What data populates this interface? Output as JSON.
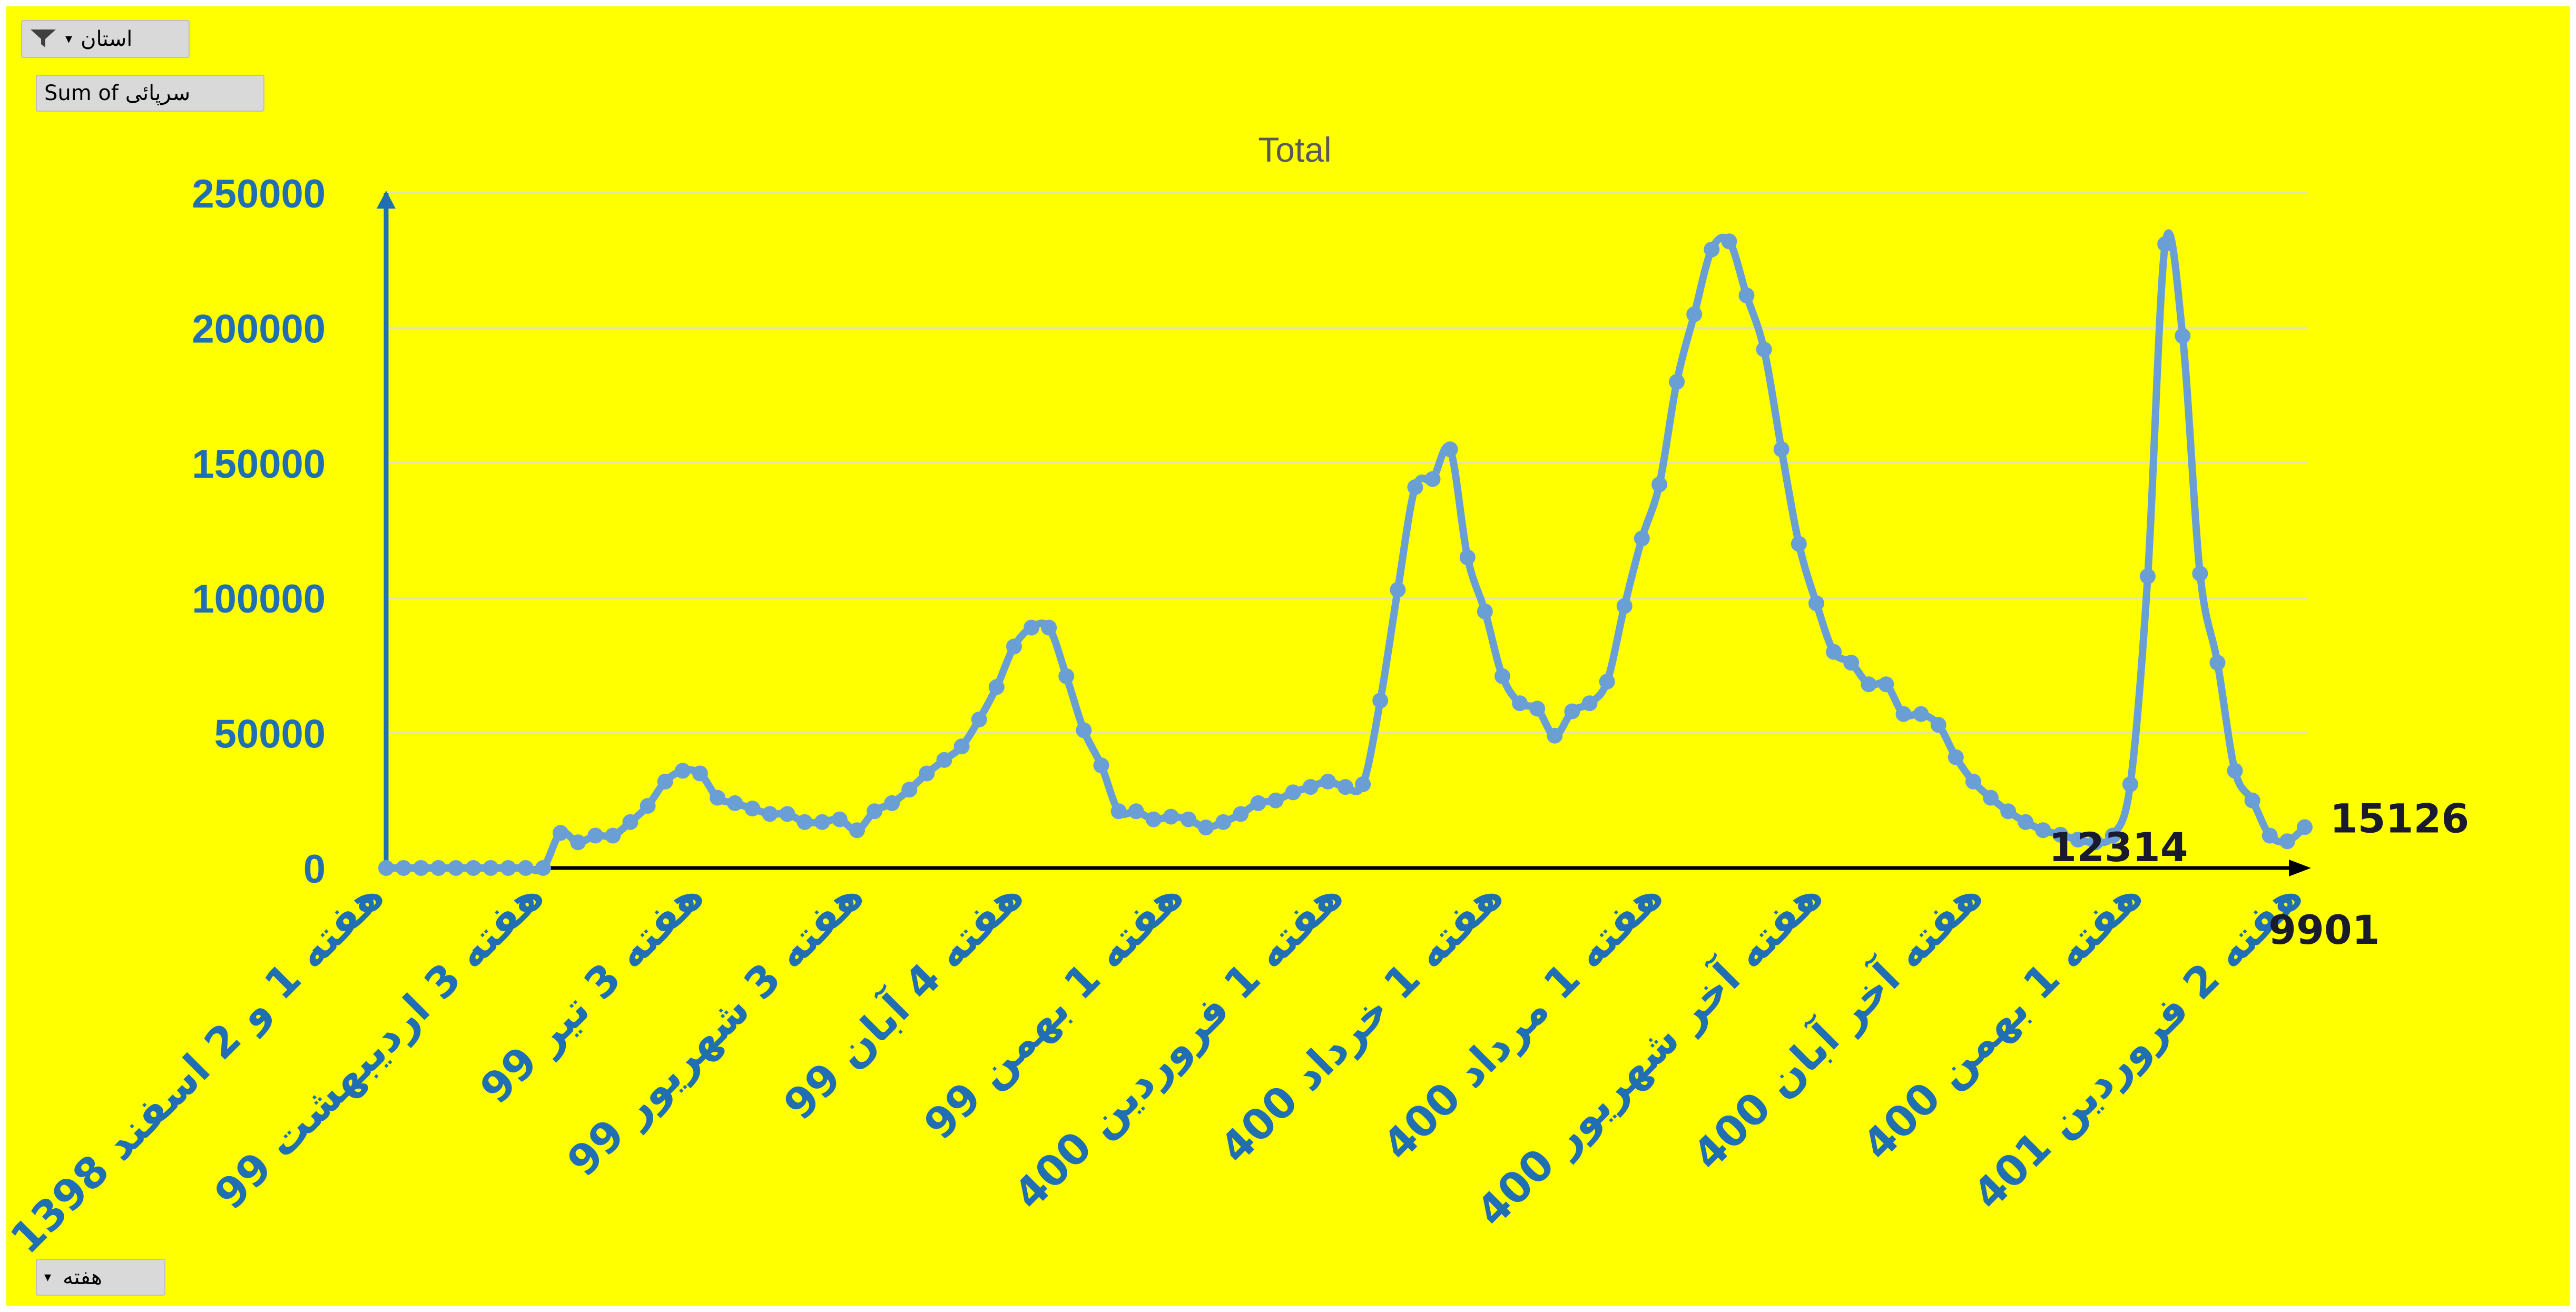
{
  "pivot_buttons": {
    "filter_label": "استان",
    "value_label": "Sum of سرپائی",
    "axis_label": "هفته"
  },
  "colors": {
    "background": "#ffff00",
    "line": "#6a9fd6",
    "axis": "#1f6fb2",
    "tick_text": "#1f6fb2",
    "title_text": "#595959",
    "annotation_text": "#1a1a2e",
    "gridline": "#e3e3b0"
  },
  "chart_data": {
    "type": "line",
    "title": "Total",
    "ylim": [
      0,
      250000
    ],
    "y_ticks": [
      0,
      50000,
      100000,
      150000,
      200000,
      250000
    ],
    "grid": true,
    "legend": "none",
    "x_labels": [
      "هفته 1 و 2 اسفند 1398",
      "هفته 3 اردیبهشت 99",
      "هفته 3 تیر 99",
      "هفته 3 شهریور 99",
      "هفته 4 آبان 99",
      "هفته 1 بهمن 99",
      "هفته 1 فروردین 400",
      "هفته 1 خرداد 400",
      "هفته 1 مرداد 400",
      "هفته آخر شهریور 400",
      "هفته آخر آبان 400",
      "هفته 1 بهمن 400",
      "هفته 2 فروردین 401"
    ],
    "series": [
      {
        "values": [
          0,
          0,
          0,
          0,
          0,
          0,
          0,
          0,
          0,
          0,
          13000,
          9500,
          12000,
          12000,
          17000,
          23000,
          32000,
          36000,
          35000,
          26000,
          24000,
          22000,
          20000,
          20000,
          17000,
          17000,
          18000,
          14000,
          21000,
          24000,
          29000,
          35000,
          40000,
          45000,
          55000,
          67000,
          82000,
          89000,
          89000,
          71000,
          51000,
          38000,
          21000,
          21000,
          18000,
          19000,
          18000,
          15000,
          17000,
          20000,
          24000,
          25000,
          28000,
          30000,
          32000,
          30000,
          31000,
          62000,
          103000,
          141000,
          144000,
          155000,
          115000,
          95000,
          71000,
          61000,
          59000,
          49000,
          58000,
          61000,
          69000,
          97000,
          122000,
          142000,
          180000,
          205000,
          229000,
          232000,
          212000,
          192000,
          155000,
          120000,
          98000,
          80000,
          76000,
          68000,
          68000,
          57000,
          57000,
          53000,
          41000,
          32000,
          26000,
          21000,
          17000,
          14000,
          12314,
          10500,
          9500,
          12000,
          31000,
          108000,
          231000,
          197000,
          109000,
          76000,
          36000,
          25000,
          12000,
          9901,
          15126
        ]
      }
    ],
    "annotations": [
      {
        "text": "12314",
        "index": 96
      },
      {
        "text": "9901",
        "index": 109
      },
      {
        "text": "15126",
        "index": 110
      }
    ]
  }
}
